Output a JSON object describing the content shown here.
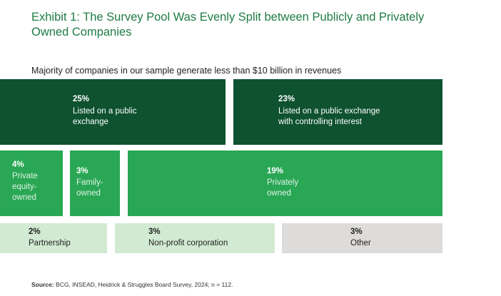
{
  "title": "Exhibit 1: The Survey Pool Was Evenly Split between Publicly and Privately Owned Companies",
  "subtitle": "Majority of companies in our sample generate less than $10 billion in revenues",
  "source_label": "Source:",
  "source_text": "BCG, INSEAD, Heidrick & Struggles Board Survey, 2024; n = 112.",
  "colors": {
    "public": "#0e5230",
    "private": "#29a754",
    "other_org": "#d2ead2",
    "other": "#dedcda"
  },
  "chart_data": {
    "type": "treemap",
    "unit": "%",
    "rows": [
      [
        {
          "pct": "25%",
          "value": 25,
          "label": "Listed on a public exchange"
        },
        {
          "pct": "23%",
          "value": 23,
          "label": "Listed on a public exchange with controlling interest"
        }
      ],
      [
        {
          "pct": "4%",
          "value": 4,
          "label": "Private equity-owned"
        },
        {
          "pct": "3%",
          "value": 3,
          "label": "Family-owned"
        },
        {
          "pct": "19%",
          "value": 19,
          "label": "Privately owned"
        }
      ],
      [
        {
          "pct": "2%",
          "value": 2,
          "label": "Partnership"
        },
        {
          "pct": "3%",
          "value": 3,
          "label": "Non-profit corporation"
        },
        {
          "pct": "3%",
          "value": 3,
          "label": "Other"
        }
      ]
    ]
  }
}
